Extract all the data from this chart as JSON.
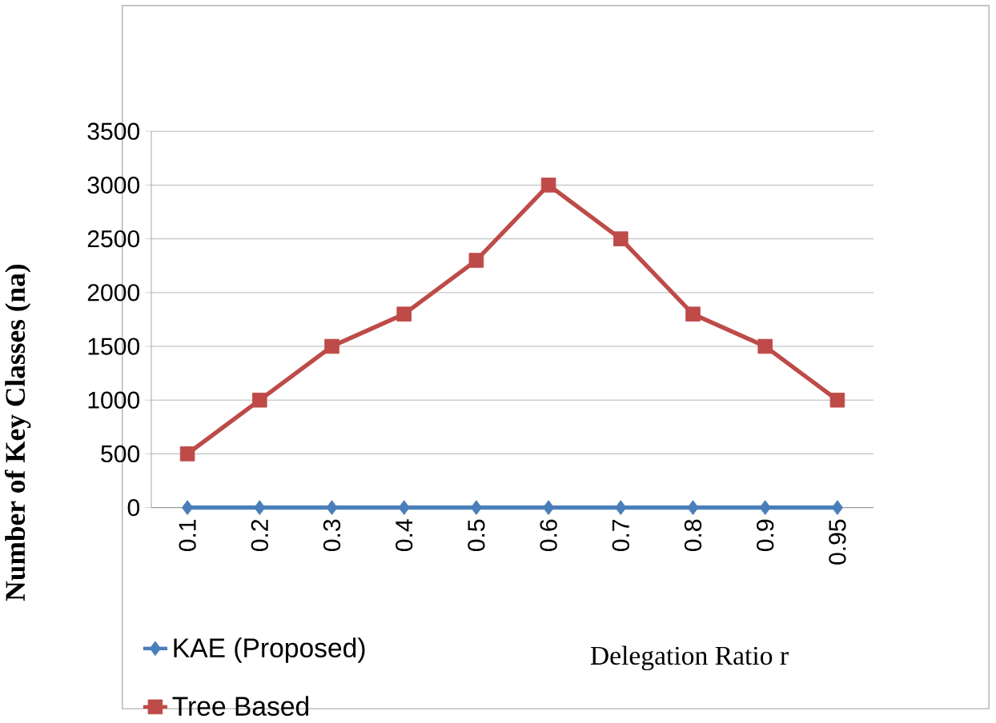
{
  "chart_data": {
    "type": "line",
    "ylabel": "Number of Key Classes (na)",
    "xlabel": "Delegation Ratio r",
    "categories": [
      "0.1",
      "0.2",
      "0.3",
      "0.4",
      "0.5",
      "0.6",
      "0.7",
      "0.8",
      "0.9",
      "0.95"
    ],
    "series": [
      {
        "name": "KAE (Proposed)",
        "color": "#4a7ebb",
        "marker": "diamond",
        "values": [
          0,
          0,
          0,
          0,
          0,
          0,
          0,
          0,
          0,
          0
        ]
      },
      {
        "name": "Tree Based",
        "color": "#be4b48",
        "marker": "square",
        "values": [
          500,
          1000,
          1500,
          1800,
          2300,
          3000,
          2500,
          1800,
          1500,
          1000
        ]
      }
    ],
    "ylim": [
      0,
      3500
    ],
    "yticks": [
      0,
      500,
      1000,
      1500,
      2000,
      2500,
      3000,
      3500
    ],
    "grid": "y",
    "legend": "bottom left",
    "line_style": "solid"
  }
}
